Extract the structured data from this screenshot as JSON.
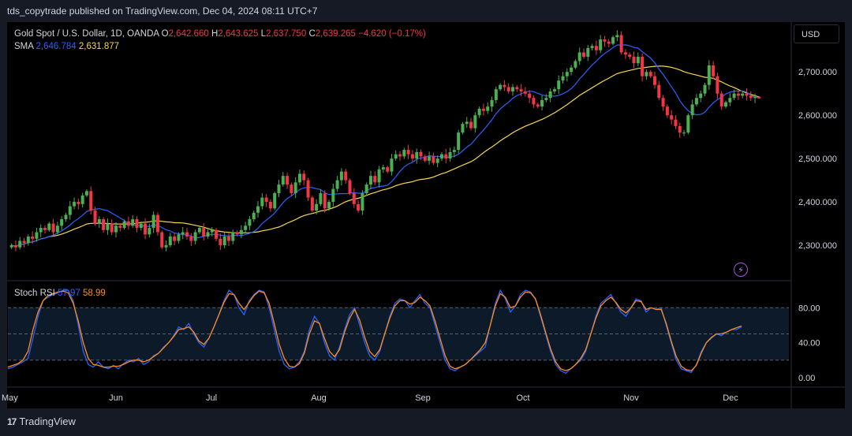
{
  "header": {
    "published_text": "tds_copytrade published on TradingView.com, Dec 04, 2024 08:11 UTC+7"
  },
  "legend": {
    "symbol": "Gold Spot / U.S. Dollar, 1D, OANDA",
    "o_label": "O",
    "o_value": "2,642.660",
    "h_label": "H",
    "h_value": "2,643.625",
    "l_label": "L",
    "l_value": "2,637.750",
    "c_label": "C",
    "c_value": "2,639.265",
    "change": "−4.620 (−0.17%)",
    "sma_label": "SMA",
    "sma_fast": "2,646.784",
    "sma_slow": "2,631.877",
    "rsi_label": "Stoch RSI",
    "rsi_k": "57.97",
    "rsi_d": "58.99"
  },
  "currency_button": "USD",
  "bolt_icon": "lightning-icon",
  "footer": {
    "logo_mark": "17",
    "logo_text": "TradingView"
  },
  "colors": {
    "up": "#26a69a",
    "up_body": "#4caf50",
    "down": "#f23645",
    "sma_fast": "#2962ff",
    "sma_slow": "#f7d84b",
    "stoch_k": "#2962ff",
    "stoch_d": "#ff8c1a",
    "legend_fast": "#2962ff",
    "legend_slow": "#f7d84b"
  },
  "chart_data": [
    {
      "type": "candlestick",
      "title": "Gold Spot / U.S. Dollar, 1D, OANDA",
      "x_ticks": [
        "May",
        "Jun",
        "Jul",
        "Aug",
        "Sep",
        "Oct",
        "Nov",
        "Dec"
      ],
      "y_ticks": [
        "2,300.000",
        "2,400.000",
        "2,500.000",
        "2,600.000",
        "2,700.000"
      ],
      "ylim": [
        2220,
        2815
      ],
      "close_series": [
        2300,
        2295,
        2310,
        2305,
        2320,
        2315,
        2330,
        2340,
        2335,
        2350,
        2330,
        2345,
        2360,
        2370,
        2390,
        2400,
        2395,
        2415,
        2425,
        2380,
        2350,
        2360,
        2335,
        2350,
        2330,
        2345,
        2340,
        2355,
        2345,
        2360,
        2340,
        2350,
        2325,
        2340,
        2370,
        2330,
        2295,
        2300,
        2320,
        2310,
        2325,
        2330,
        2320,
        2310,
        2330,
        2340,
        2320,
        2330,
        2335,
        2315,
        2300,
        2320,
        2310,
        2330,
        2325,
        2335,
        2345,
        2360,
        2375,
        2390,
        2410,
        2400,
        2385,
        2420,
        2440,
        2460,
        2440,
        2420,
        2445,
        2465,
        2450,
        2410,
        2380,
        2395,
        2420,
        2385,
        2400,
        2430,
        2450,
        2470,
        2450,
        2420,
        2395,
        2380,
        2420,
        2440,
        2460,
        2445,
        2475,
        2480,
        2470,
        2500,
        2510,
        2505,
        2520,
        2510,
        2500,
        2515,
        2505,
        2495,
        2505,
        2490,
        2500,
        2510,
        2500,
        2515,
        2520,
        2560,
        2580,
        2585,
        2570,
        2600,
        2615,
        2610,
        2620,
        2635,
        2660,
        2670,
        2665,
        2655,
        2665,
        2660,
        2655,
        2650,
        2640,
        2625,
        2620,
        2635,
        2640,
        2655,
        2660,
        2680,
        2690,
        2700,
        2710,
        2725,
        2745,
        2735,
        2755,
        2760,
        2750,
        2775,
        2770,
        2765,
        2780,
        2785,
        2745,
        2740,
        2735,
        2720,
        2735,
        2690,
        2700,
        2690,
        2670,
        2640,
        2620,
        2600,
        2590,
        2575,
        2560,
        2560,
        2600,
        2625,
        2640,
        2650,
        2670,
        2715,
        2690,
        2650,
        2620,
        2630,
        2640,
        2650,
        2645,
        2650,
        2645,
        2640,
        2642,
        2639
      ],
      "sma_fast_last": 2646.784,
      "sma_slow_last": 2631.877,
      "last_open": 2642.66,
      "last_high": 2643.625,
      "last_low": 2637.75,
      "last_close": 2639.265
    },
    {
      "type": "line",
      "title": "Stoch RSI",
      "y_ticks": [
        "0.00",
        "40.00",
        "80.00"
      ],
      "ylim": [
        -10,
        110
      ],
      "bands": [
        20,
        50,
        80
      ],
      "series": [
        {
          "name": "K",
          "values": [
            10,
            12,
            15,
            18,
            22,
            45,
            70,
            88,
            92,
            95,
            97,
            100,
            100,
            88,
            60,
            30,
            15,
            12,
            18,
            12,
            10,
            14,
            10,
            16,
            20,
            18,
            22,
            15,
            18,
            25,
            28,
            35,
            40,
            48,
            58,
            55,
            62,
            50,
            40,
            35,
            45,
            58,
            72,
            88,
            100,
            95,
            80,
            72,
            88,
            95,
            100,
            98,
            80,
            55,
            30,
            15,
            10,
            12,
            18,
            30,
            55,
            70,
            62,
            40,
            25,
            20,
            35,
            55,
            72,
            80,
            60,
            40,
            25,
            20,
            30,
            50,
            70,
            85,
            90,
            88,
            80,
            88,
            95,
            85,
            80,
            60,
            40,
            20,
            10,
            8,
            12,
            15,
            20,
            25,
            30,
            35,
            60,
            85,
            100,
            90,
            75,
            82,
            95,
            100,
            98,
            90,
            70,
            50,
            30,
            15,
            8,
            5,
            10,
            15,
            20,
            30,
            50,
            70,
            85,
            90,
            95,
            85,
            75,
            70,
            80,
            90,
            88,
            75,
            80,
            78,
            80,
            60,
            40,
            20,
            10,
            8,
            6,
            15,
            30,
            40,
            45,
            50,
            48,
            52,
            55,
            55,
            58
          ],
          "color": "#2962ff"
        },
        {
          "name": "D",
          "values": [
            12,
            14,
            16,
            20,
            30,
            55,
            75,
            88,
            94,
            96,
            98,
            99,
            97,
            85,
            65,
            40,
            22,
            15,
            14,
            12,
            12,
            13,
            13,
            15,
            18,
            20,
            20,
            18,
            20,
            24,
            28,
            34,
            40,
            47,
            55,
            56,
            58,
            52,
            42,
            38,
            45,
            58,
            72,
            86,
            96,
            95,
            85,
            78,
            86,
            94,
            99,
            97,
            85,
            62,
            38,
            22,
            13,
            12,
            16,
            28,
            50,
            65,
            62,
            45,
            30,
            24,
            32,
            52,
            68,
            78,
            66,
            46,
            30,
            24,
            32,
            50,
            68,
            82,
            88,
            88,
            84,
            86,
            92,
            88,
            82,
            65,
            45,
            25,
            13,
            10,
            12,
            15,
            20,
            26,
            32,
            40,
            60,
            82,
            96,
            92,
            80,
            82,
            92,
            98,
            97,
            90,
            72,
            52,
            33,
            18,
            10,
            8,
            10,
            15,
            22,
            32,
            50,
            68,
            82,
            88,
            92,
            86,
            78,
            74,
            80,
            88,
            87,
            78,
            80,
            78,
            78,
            62,
            42,
            24,
            13,
            9,
            8,
            14,
            28,
            40,
            46,
            50,
            50,
            52,
            55,
            57,
            58.99
          ],
          "color": "#ff8c1a"
        }
      ],
      "k_last": 57.97,
      "d_last": 58.99
    }
  ]
}
